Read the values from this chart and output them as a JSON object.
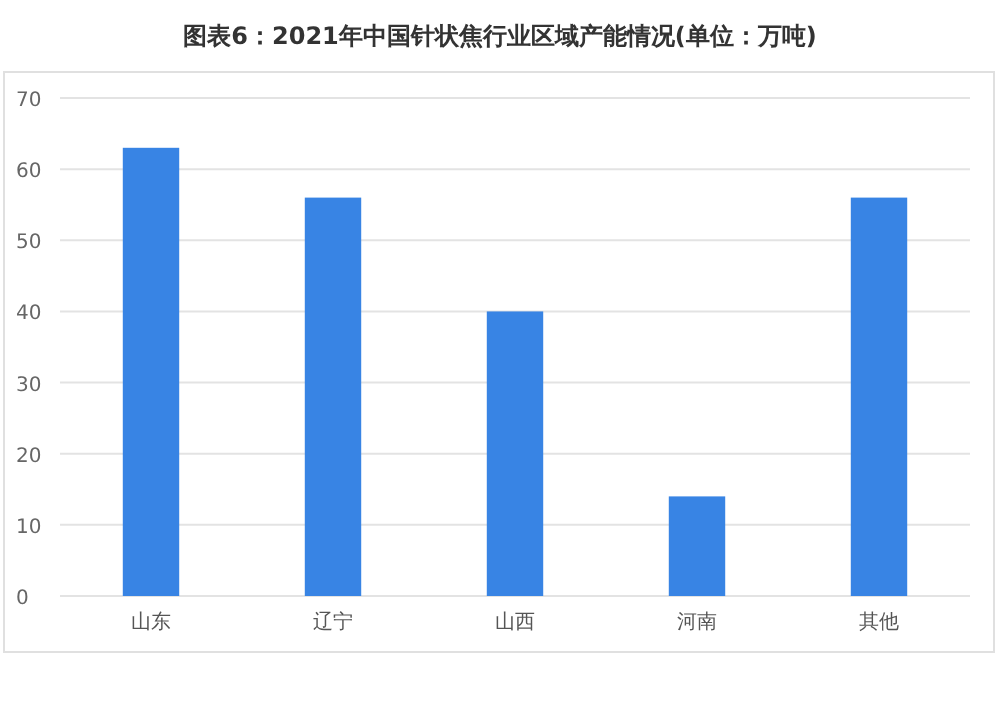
{
  "chart_data": {
    "type": "bar",
    "title": "图表6：2021年中国针状焦行业区域产能情况(单位：万吨)",
    "categories": [
      "山东",
      "辽宁",
      "山西",
      "河南",
      "其他"
    ],
    "values": [
      63,
      56,
      40,
      14,
      56
    ],
    "color": "#3884e4",
    "ylim": [
      0,
      70
    ],
    "yticks": [
      0,
      10,
      20,
      30,
      40,
      50,
      60,
      70
    ],
    "grid": "y"
  }
}
